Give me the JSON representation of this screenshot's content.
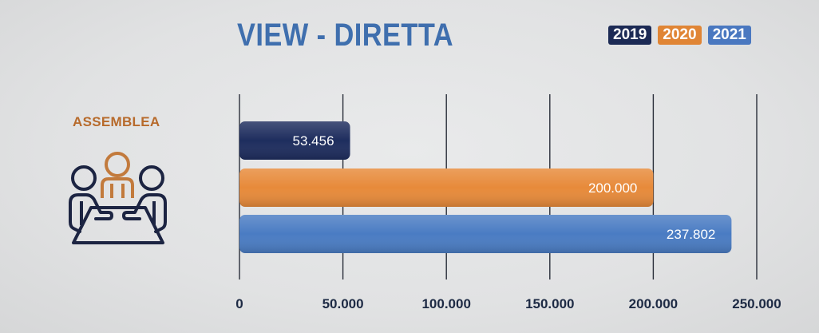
{
  "title": "VIEW - DIRETTA",
  "legend": [
    {
      "label": "2019",
      "color": "#1c2a55"
    },
    {
      "label": "2020",
      "color": "#e08535"
    },
    {
      "label": "2021",
      "color": "#4a78c0"
    }
  ],
  "category_icon": "meeting-table-icon",
  "chart_data": {
    "type": "bar",
    "orientation": "horizontal",
    "title": "VIEW - DIRETTA",
    "categories": [
      "ASSEMBLEA"
    ],
    "series": [
      {
        "name": "2019",
        "values": [
          53456
        ],
        "value_label": "53.456",
        "color": "#1e2d5e"
      },
      {
        "name": "2020",
        "values": [
          200000
        ],
        "value_label": "200.000",
        "color": "#e78a3a"
      },
      {
        "name": "2021",
        "values": [
          237802
        ],
        "value_label": "237.802",
        "color": "#4a7cc3"
      }
    ],
    "xlim": [
      0,
      250000
    ],
    "xticks": [
      0,
      50000,
      100000,
      150000,
      200000,
      250000
    ],
    "xtick_labels": [
      "0",
      "50.000",
      "100.000",
      "150.000",
      "200.000",
      "250.000"
    ],
    "grid": true,
    "legend_position": "top-right"
  }
}
